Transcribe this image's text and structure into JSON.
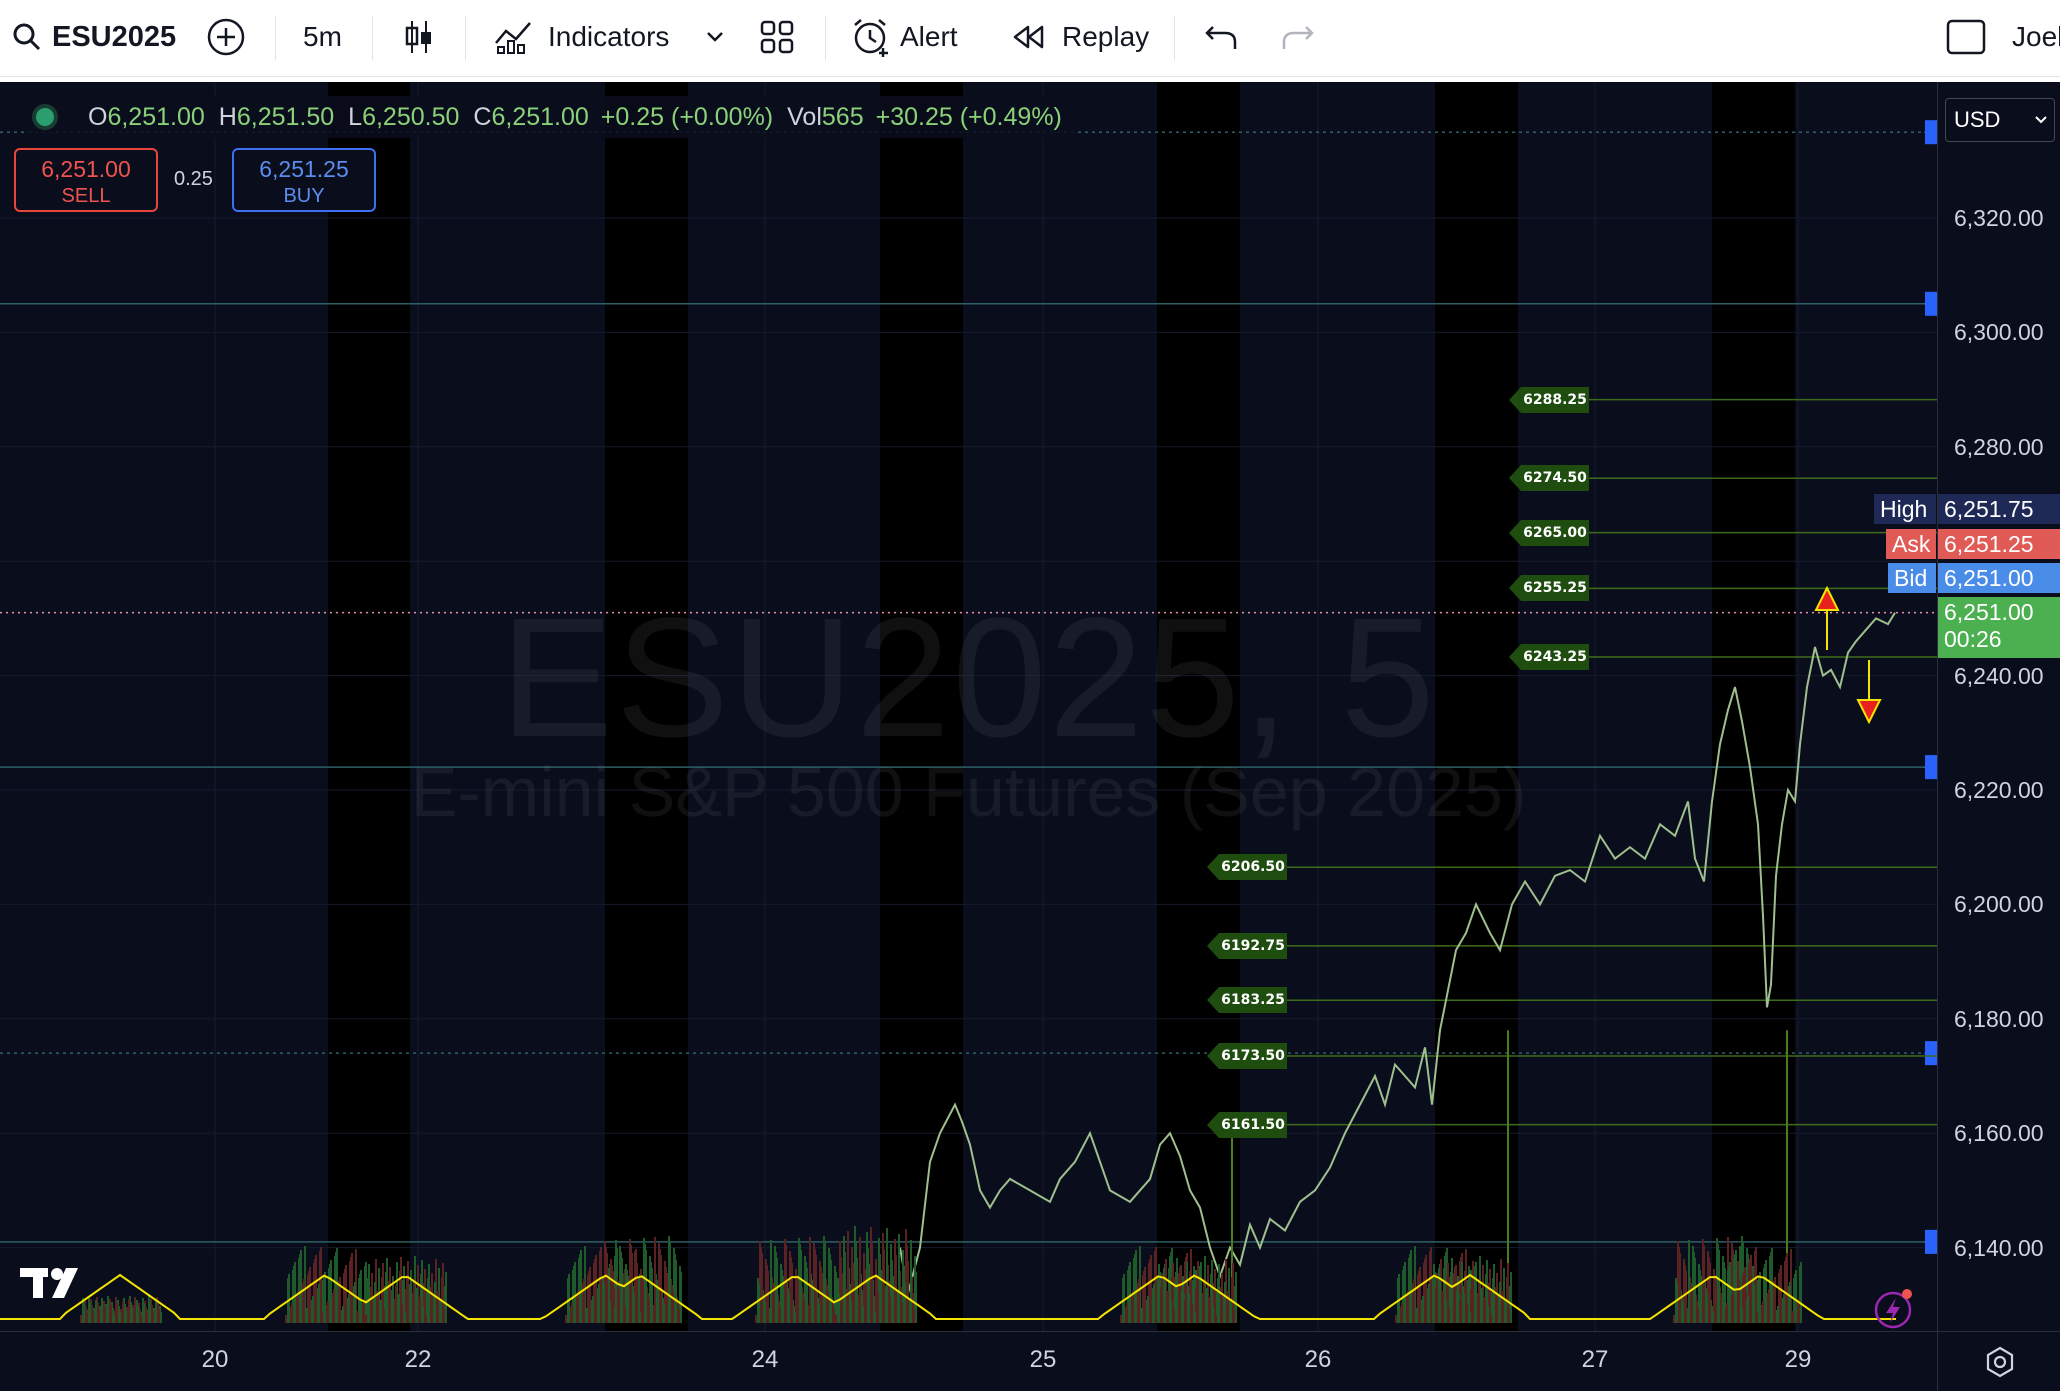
{
  "toolbar": {
    "symbol": "ESU2025",
    "interval": "5m",
    "indicators_label": "Indicators",
    "alert_label": "Alert",
    "replay_label": "Replay",
    "user": "Joel"
  },
  "legend": {
    "o_label": "O",
    "o": "6,251.00",
    "h_label": "H",
    "h": "6,251.50",
    "l_label": "L",
    "l": "6,250.50",
    "c_label": "C",
    "c": "6,251.00",
    "change": "+0.25 (+0.00%)",
    "vol_label": "Vol",
    "vol": "565",
    "vol_change": "+30.25 (+0.49%)"
  },
  "trade": {
    "sell_price": "6,251.00",
    "sell_label": "SELL",
    "spread": "0.25",
    "buy_price": "6,251.25",
    "buy_label": "BUY"
  },
  "watermark": {
    "title": "ESU2025, 5",
    "subtitle": "E-mini S&P 500 Futures (Sep 2025)"
  },
  "price_axis": {
    "currency": "USD",
    "ticks": [
      "6,320.00",
      "6,300.00",
      "6,280.00",
      "6,240.00",
      "6,220.00",
      "6,200.00",
      "6,180.00",
      "6,160.00",
      "6,140.00"
    ],
    "high_label": "High",
    "high": "6,251.75",
    "ask_label": "Ask",
    "ask": "6,251.25",
    "bid_label": "Bid",
    "bid": "6,251.00",
    "last": "6,251.00",
    "countdown": "00:26"
  },
  "time_axis": {
    "ticks": [
      "20",
      "22",
      "24",
      "25",
      "26",
      "27",
      "29"
    ]
  },
  "levels": [
    "6288.25",
    "6274.50",
    "6265.00",
    "6255.25",
    "6243.25",
    "6206.50",
    "6192.75",
    "6183.25",
    "6173.50",
    "6161.50"
  ],
  "colors": {
    "background": "#0a0e1c",
    "up": "#26a69a",
    "down": "#ef5350",
    "level_line": "#3d6b1a",
    "volume_ma": "#f5e400",
    "bid": "#2962ff",
    "ask": "#e8453c"
  }
}
